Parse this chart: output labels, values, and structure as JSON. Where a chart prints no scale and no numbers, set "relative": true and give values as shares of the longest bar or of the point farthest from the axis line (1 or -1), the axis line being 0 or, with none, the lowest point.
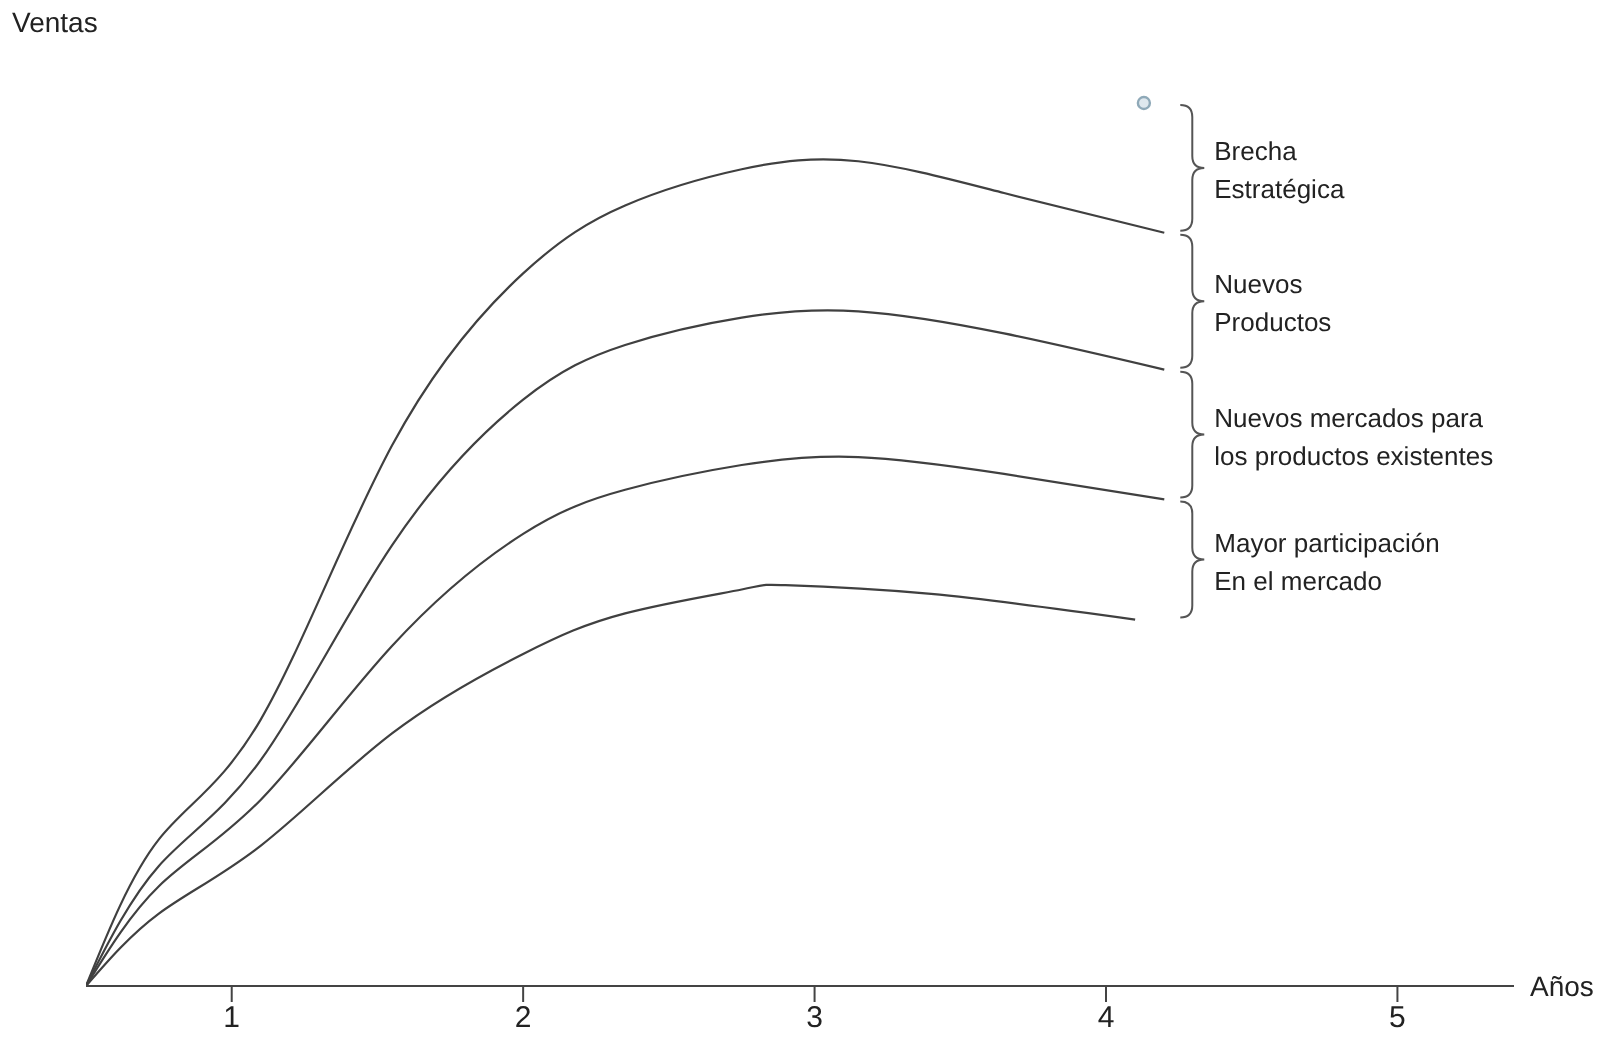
{
  "chart_data": {
    "type": "line",
    "xlabel": "Años",
    "ylabel": "Ventas",
    "relative": true,
    "xlim": [
      0.5,
      5.4
    ],
    "xticks": [
      1,
      2,
      3,
      4,
      5
    ],
    "tick_labels": "x",
    "marker": "none",
    "series": [
      {
        "color": "#404040",
        "x": [
          0.5,
          0.75,
          1.1,
          1.55,
          2.0,
          2.35,
          2.75,
          3.15,
          3.65,
          4.2
        ],
        "values": [
          0,
          0.166,
          0.302,
          0.612,
          0.807,
          0.884,
          0.925,
          0.934,
          0.898,
          0.853
        ]
      },
      {
        "color": "#404040",
        "x": [
          0.5,
          0.75,
          1.1,
          1.55,
          2.0,
          2.35,
          2.75,
          3.15,
          3.65,
          4.2
        ],
        "values": [
          0,
          0.136,
          0.256,
          0.499,
          0.664,
          0.726,
          0.757,
          0.764,
          0.739,
          0.698
        ]
      },
      {
        "color": "#404040",
        "x": [
          0.5,
          0.75,
          1.1,
          1.55,
          2.0,
          2.35,
          2.75,
          3.15,
          3.65,
          4.2
        ],
        "values": [
          0,
          0.113,
          0.211,
          0.385,
          0.512,
          0.562,
          0.59,
          0.599,
          0.58,
          0.551
        ]
      },
      {
        "color": "#404040",
        "x": [
          0.5,
          0.75,
          1.1,
          1.55,
          2.0,
          2.35,
          2.75,
          2.9,
          3.4,
          4.1
        ],
        "values": [
          0,
          0.082,
          0.159,
          0.286,
          0.376,
          0.422,
          0.449,
          0.454,
          0.444,
          0.415
        ]
      },
      {
        "type": "scatter",
        "marker": "circle",
        "color": "#8fa9b8",
        "x": [
          4.13
        ],
        "values": [
          1
        ]
      }
    ],
    "annotations": [
      "Brecha\nEstratégica",
      "Nuevos\nProductos",
      "Nuevos mercados para\nlos productos existentes",
      "Mayor participación\nEn el mercado"
    ]
  }
}
